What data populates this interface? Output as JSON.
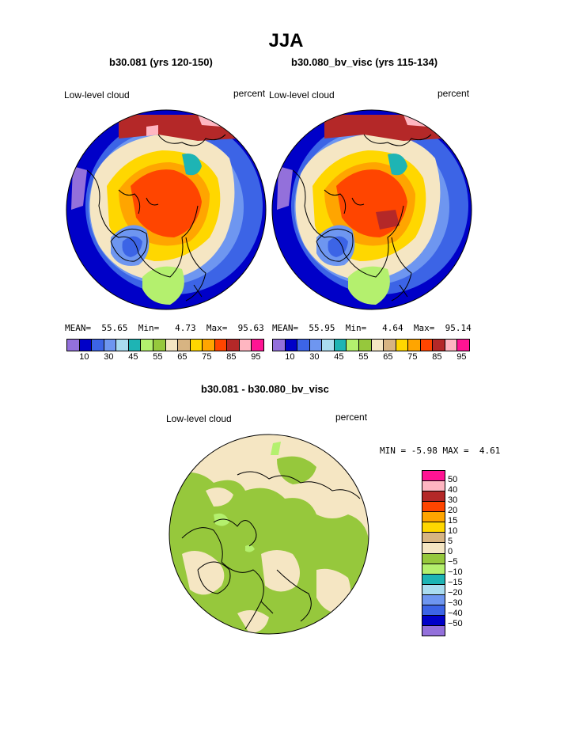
{
  "title": "JJA",
  "variable_label": "Low-level cloud",
  "units_label": "percent",
  "palette_colors": {
    "purple": "#9370db",
    "navy": "#0000c8",
    "blue": "#3c64e6",
    "cornflower": "#6e96f0",
    "light_cyan": "#aadcf0",
    "teal": "#1eb4b4",
    "light_green": "#b4f06e",
    "green": "#96c83c",
    "beige": "#f5e6c3",
    "tan": "#d7b482",
    "yellow": "#ffd700",
    "orange": "#ffa500",
    "red_orange": "#ff4500",
    "dark_red": "#b42828",
    "pink": "#ffb6c1",
    "magenta": "#ff1493"
  },
  "panels": [
    {
      "id": "left",
      "case_title": "b30.081 (yrs 120-150)",
      "mean_label": "MEAN=",
      "mean_value": "55.65",
      "min_label": "Min=",
      "min_value": "4.73",
      "max_label": "Max=",
      "max_value": "95.63",
      "colorbar_ticks": [
        "10",
        "30",
        "45",
        "55",
        "65",
        "75",
        "85",
        "95"
      ]
    },
    {
      "id": "right",
      "case_title": "b30.080_bv_visc (yrs 115-134)",
      "mean_label": "MEAN=",
      "mean_value": "55.95",
      "min_label": "Min=",
      "min_value": "4.64",
      "max_label": "Max=",
      "max_value": "95.14",
      "colorbar_ticks": [
        "10",
        "30",
        "45",
        "55",
        "65",
        "75",
        "85",
        "95"
      ]
    }
  ],
  "difference": {
    "title": "b30.081 - b30.080_bv_visc",
    "min_label": "MIN =",
    "min_value": "-5.98",
    "max_label": "MAX =",
    "max_value": "4.61",
    "colorbar_labels": [
      "50",
      "40",
      "30",
      "20",
      "15",
      "10",
      "5",
      "0",
      "−5",
      "−10",
      "−15",
      "−20",
      "−30",
      "−40",
      "−50"
    ]
  }
}
